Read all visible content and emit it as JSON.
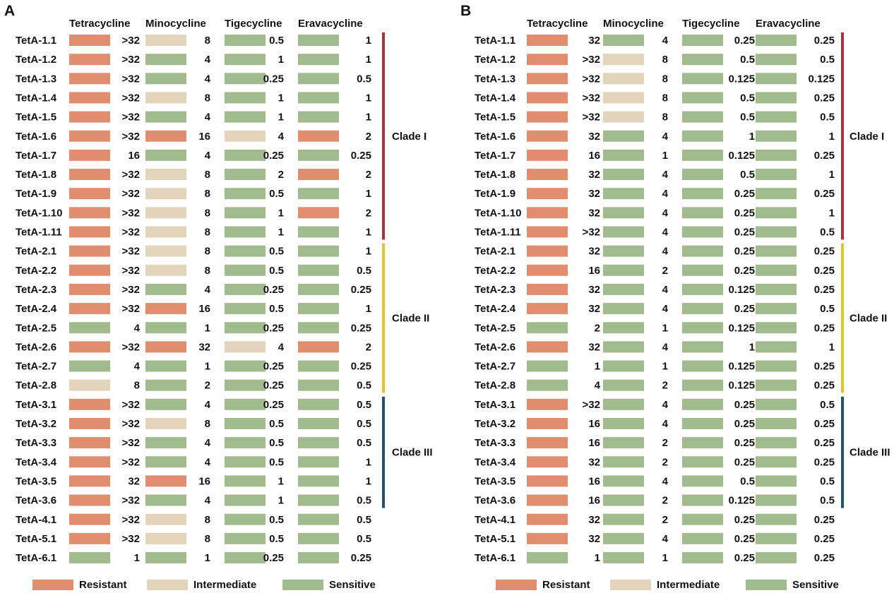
{
  "colors": {
    "Resistant": "#e08e6f",
    "Intermediate": "#e3d5bb",
    "Sensitive": "#a1bb8f",
    "clade_I": "#a8303f",
    "clade_II": "#e3c52a",
    "clade_III": "#23506e"
  },
  "legend": [
    {
      "key": "R",
      "label": "Resistant"
    },
    {
      "key": "I",
      "label": "Intermediate"
    },
    {
      "key": "S",
      "label": "Sensitive"
    }
  ],
  "chart_data": [
    {
      "type": "table",
      "panel": "A",
      "columns": [
        "Tetracycline",
        "Minocycline",
        "Tigecycline",
        "Eravacycline"
      ],
      "rows": [
        "TetA-1.1",
        "TetA-1.2",
        "TetA-1.3",
        "TetA-1.4",
        "TetA-1.5",
        "TetA-1.6",
        "TetA-1.7",
        "TetA-1.8",
        "TetA-1.9",
        "TetA-1.10",
        "TetA-1.11",
        "TetA-2.1",
        "TetA-2.2",
        "TetA-2.3",
        "TetA-2.4",
        "TetA-2.5",
        "TetA-2.6",
        "TetA-2.7",
        "TetA-2.8",
        "TetA-3.1",
        "TetA-3.2",
        "TetA-3.3",
        "TetA-3.4",
        "TetA-3.5",
        "TetA-3.6",
        "TetA-4.1",
        "TetA-5.1",
        "TetA-6.1"
      ],
      "values": [
        [
          ">32",
          "8",
          "0.5",
          "1"
        ],
        [
          ">32",
          "4",
          "1",
          "1"
        ],
        [
          ">32",
          "4",
          "0.25",
          "0.5"
        ],
        [
          ">32",
          "8",
          "1",
          "1"
        ],
        [
          ">32",
          "4",
          "1",
          "1"
        ],
        [
          ">32",
          "16",
          "4",
          "2"
        ],
        [
          "16",
          "4",
          "0.25",
          "0.25"
        ],
        [
          ">32",
          "8",
          "2",
          "2"
        ],
        [
          ">32",
          "8",
          "0.5",
          "1"
        ],
        [
          ">32",
          "8",
          "1",
          "2"
        ],
        [
          ">32",
          "8",
          "1",
          "1"
        ],
        [
          ">32",
          "8",
          "0.5",
          "1"
        ],
        [
          ">32",
          "8",
          "0.5",
          "0.5"
        ],
        [
          ">32",
          "4",
          "0.25",
          "0.25"
        ],
        [
          ">32",
          "16",
          "0.5",
          "1"
        ],
        [
          "4",
          "1",
          "0.25",
          "0.25"
        ],
        [
          ">32",
          "32",
          "4",
          "2"
        ],
        [
          "4",
          "1",
          "0.25",
          "0.25"
        ],
        [
          "8",
          "2",
          "0.25",
          "0.5"
        ],
        [
          ">32",
          "4",
          "0.25",
          "0.5"
        ],
        [
          ">32",
          "8",
          "0.5",
          "0.5"
        ],
        [
          ">32",
          "4",
          "0.5",
          "0.5"
        ],
        [
          ">32",
          "4",
          "0.5",
          "1"
        ],
        [
          "32",
          "16",
          "1",
          "1"
        ],
        [
          ">32",
          "4",
          "1",
          "0.5"
        ],
        [
          ">32",
          "8",
          "0.5",
          "0.5"
        ],
        [
          ">32",
          "8",
          "0.5",
          "0.5"
        ],
        [
          "1",
          "1",
          "0.25",
          "0.25"
        ]
      ],
      "categories": [
        [
          "R",
          "I",
          "S",
          "S"
        ],
        [
          "R",
          "S",
          "S",
          "S"
        ],
        [
          "R",
          "S",
          "S",
          "S"
        ],
        [
          "R",
          "I",
          "S",
          "S"
        ],
        [
          "R",
          "S",
          "S",
          "S"
        ],
        [
          "R",
          "R",
          "I",
          "R"
        ],
        [
          "R",
          "S",
          "S",
          "S"
        ],
        [
          "R",
          "I",
          "S",
          "R"
        ],
        [
          "R",
          "I",
          "S",
          "S"
        ],
        [
          "R",
          "I",
          "S",
          "R"
        ],
        [
          "R",
          "I",
          "S",
          "S"
        ],
        [
          "R",
          "I",
          "S",
          "S"
        ],
        [
          "R",
          "I",
          "S",
          "S"
        ],
        [
          "R",
          "S",
          "S",
          "S"
        ],
        [
          "R",
          "R",
          "S",
          "S"
        ],
        [
          "S",
          "S",
          "S",
          "S"
        ],
        [
          "R",
          "R",
          "I",
          "R"
        ],
        [
          "S",
          "S",
          "S",
          "S"
        ],
        [
          "I",
          "S",
          "S",
          "S"
        ],
        [
          "R",
          "S",
          "S",
          "S"
        ],
        [
          "R",
          "I",
          "S",
          "S"
        ],
        [
          "R",
          "S",
          "S",
          "S"
        ],
        [
          "R",
          "S",
          "S",
          "S"
        ],
        [
          "R",
          "R",
          "S",
          "S"
        ],
        [
          "R",
          "S",
          "S",
          "S"
        ],
        [
          "R",
          "I",
          "S",
          "S"
        ],
        [
          "R",
          "I",
          "S",
          "S"
        ],
        [
          "S",
          "S",
          "S",
          "S"
        ]
      ],
      "clades": [
        {
          "label": "Clade I",
          "first_row": 0,
          "last_row": 10,
          "color": "#a8303f"
        },
        {
          "label": "Clade II",
          "first_row": 11,
          "last_row": 18,
          "color": "#e3c52a"
        },
        {
          "label": "Clade III",
          "first_row": 19,
          "last_row": 24,
          "color": "#23506e"
        }
      ]
    },
    {
      "type": "table",
      "panel": "B",
      "columns": [
        "Tetracycline",
        "Minocycline",
        "Tigecycline",
        "Eravacycline"
      ],
      "rows": [
        "TetA-1.1",
        "TetA-1.2",
        "TetA-1.3",
        "TetA-1.4",
        "TetA-1.5",
        "TetA-1.6",
        "TetA-1.7",
        "TetA-1.8",
        "TetA-1.9",
        "TetA-1.10",
        "TetA-1.11",
        "TetA-2.1",
        "TetA-2.2",
        "TetA-2.3",
        "TetA-2.4",
        "TetA-2.5",
        "TetA-2.6",
        "TetA-2.7",
        "TetA-2.8",
        "TetA-3.1",
        "TetA-3.2",
        "TetA-3.3",
        "TetA-3.4",
        "TetA-3.5",
        "TetA-3.6",
        "TetA-4.1",
        "TetA-5.1",
        "TetA-6.1"
      ],
      "values": [
        [
          "32",
          "4",
          "0.25",
          "0.25"
        ],
        [
          ">32",
          "8",
          "0.5",
          "0.5"
        ],
        [
          ">32",
          "8",
          "0.125",
          "0.125"
        ],
        [
          ">32",
          "8",
          "0.5",
          "0.25"
        ],
        [
          ">32",
          "8",
          "0.5",
          "0.5"
        ],
        [
          "32",
          "4",
          "1",
          "1"
        ],
        [
          "16",
          "1",
          "0.125",
          "0.25"
        ],
        [
          "32",
          "4",
          "0.5",
          "1"
        ],
        [
          "32",
          "4",
          "0.25",
          "0.25"
        ],
        [
          "32",
          "4",
          "0.25",
          "1"
        ],
        [
          ">32",
          "4",
          "0.25",
          "0.5"
        ],
        [
          "32",
          "4",
          "0.25",
          "0.25"
        ],
        [
          "16",
          "2",
          "0.25",
          "0.25"
        ],
        [
          "32",
          "4",
          "0.125",
          "0.25"
        ],
        [
          "32",
          "4",
          "0.25",
          "0.5"
        ],
        [
          "2",
          "1",
          "0.125",
          "0.25"
        ],
        [
          "32",
          "4",
          "1",
          "1"
        ],
        [
          "1",
          "1",
          "0.125",
          "0.25"
        ],
        [
          "4",
          "2",
          "0.125",
          "0.25"
        ],
        [
          ">32",
          "4",
          "0.25",
          "0.5"
        ],
        [
          "16",
          "4",
          "0.25",
          "0.25"
        ],
        [
          "16",
          "2",
          "0.25",
          "0.25"
        ],
        [
          "32",
          "2",
          "0.25",
          "0.25"
        ],
        [
          "16",
          "4",
          "0.5",
          "0.5"
        ],
        [
          "16",
          "2",
          "0.125",
          "0.5"
        ],
        [
          "32",
          "2",
          "0.25",
          "0.25"
        ],
        [
          "32",
          "4",
          "0.25",
          "0.25"
        ],
        [
          "1",
          "1",
          "0.25",
          "0.25"
        ]
      ],
      "categories": [
        [
          "R",
          "S",
          "S",
          "S"
        ],
        [
          "R",
          "I",
          "S",
          "S"
        ],
        [
          "R",
          "I",
          "S",
          "S"
        ],
        [
          "R",
          "I",
          "S",
          "S"
        ],
        [
          "R",
          "I",
          "S",
          "S"
        ],
        [
          "R",
          "S",
          "S",
          "S"
        ],
        [
          "R",
          "S",
          "S",
          "S"
        ],
        [
          "R",
          "S",
          "S",
          "S"
        ],
        [
          "R",
          "S",
          "S",
          "S"
        ],
        [
          "R",
          "S",
          "S",
          "S"
        ],
        [
          "R",
          "S",
          "S",
          "S"
        ],
        [
          "R",
          "S",
          "S",
          "S"
        ],
        [
          "R",
          "S",
          "S",
          "S"
        ],
        [
          "R",
          "S",
          "S",
          "S"
        ],
        [
          "R",
          "S",
          "S",
          "S"
        ],
        [
          "S",
          "S",
          "S",
          "S"
        ],
        [
          "R",
          "S",
          "S",
          "S"
        ],
        [
          "S",
          "S",
          "S",
          "S"
        ],
        [
          "S",
          "S",
          "S",
          "S"
        ],
        [
          "R",
          "S",
          "S",
          "S"
        ],
        [
          "R",
          "S",
          "S",
          "S"
        ],
        [
          "R",
          "S",
          "S",
          "S"
        ],
        [
          "R",
          "S",
          "S",
          "S"
        ],
        [
          "R",
          "S",
          "S",
          "S"
        ],
        [
          "R",
          "S",
          "S",
          "S"
        ],
        [
          "R",
          "S",
          "S",
          "S"
        ],
        [
          "R",
          "S",
          "S",
          "S"
        ],
        [
          "S",
          "S",
          "S",
          "S"
        ]
      ],
      "clades": [
        {
          "label": "Clade I",
          "first_row": 0,
          "last_row": 10,
          "color": "#a8303f"
        },
        {
          "label": "Clade II",
          "first_row": 11,
          "last_row": 18,
          "color": "#e3c52a"
        },
        {
          "label": "Clade III",
          "first_row": 19,
          "last_row": 24,
          "color": "#23506e"
        }
      ]
    }
  ]
}
